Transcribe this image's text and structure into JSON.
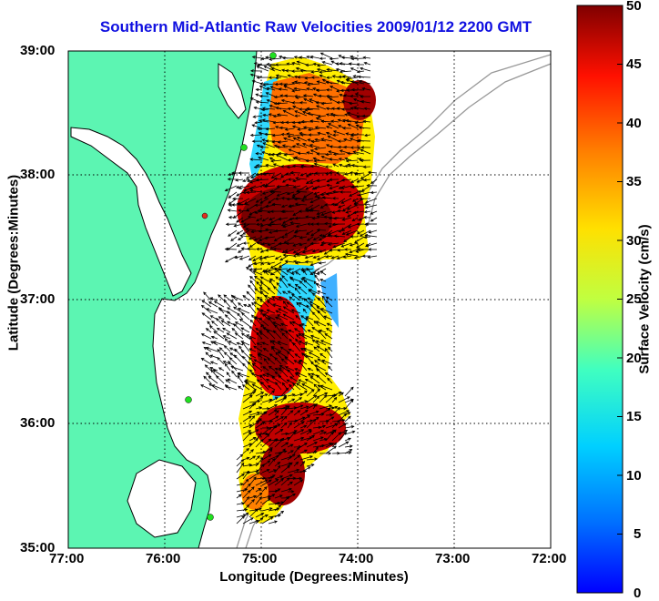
{
  "title": "Southern Mid-Atlantic Raw Velocities 2009/01/12 2200 GMT",
  "x_axis": {
    "label": "Longitude (Degrees:Minutes)",
    "ticks": [
      "77:00",
      "76:00",
      "75:00",
      "74:00",
      "73:00",
      "72:00"
    ]
  },
  "y_axis": {
    "label": "Latitude (Degrees:Minutes)",
    "ticks": [
      "39:00",
      "38:00",
      "37:00",
      "36:00",
      "35:00"
    ]
  },
  "colorbar": {
    "label": "Surface Velocity (cm/s)",
    "ticks": [
      "50",
      "45",
      "40",
      "35",
      "30",
      "25",
      "20",
      "15",
      "10",
      "5",
      "0"
    ],
    "min": 0,
    "max": 50
  },
  "colors": {
    "land": "#5cf5b2",
    "title": "#1010e0",
    "station_green": "#20e020",
    "station_red": "#e03020"
  }
}
